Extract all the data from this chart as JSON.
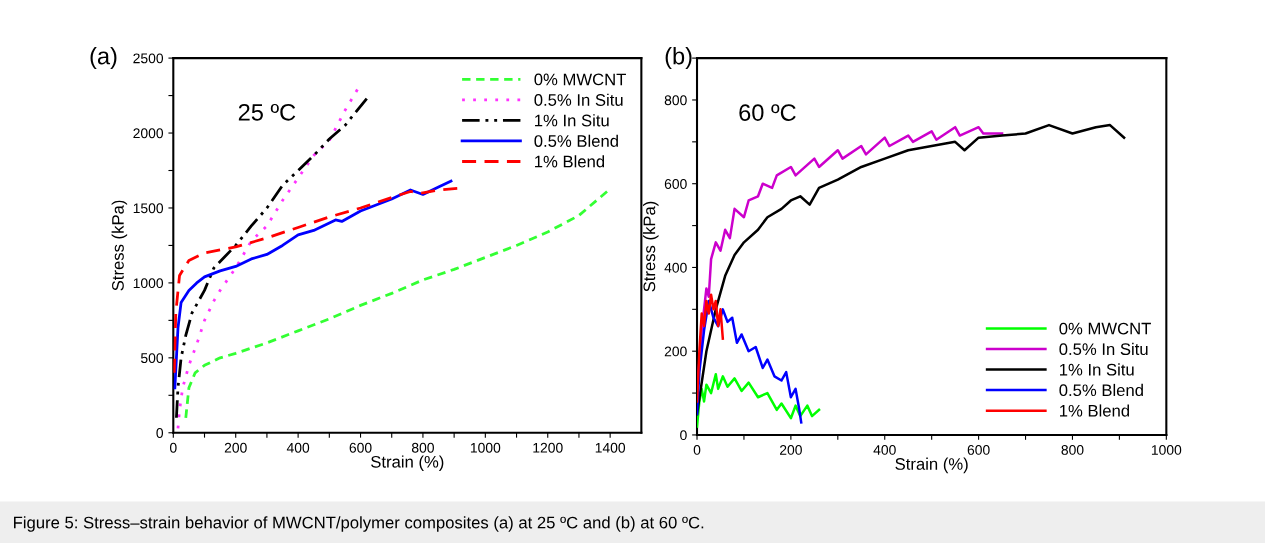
{
  "chart_data": [
    {
      "type": "line",
      "xlabel": "Strain (%)",
      "ylabel": "Stress (kPa)",
      "xlim": [
        0,
        1500
      ],
      "ylim": [
        0,
        2500
      ],
      "xticks": [
        0,
        {
          "value": 100,
          "label": null
        },
        200,
        {
          "value": 300,
          "label": null
        },
        400,
        {
          "value": 500,
          "label": null
        },
        600,
        {
          "value": 700,
          "label": null
        },
        800,
        {
          "value": 900,
          "label": null
        },
        1000,
        {
          "value": 1100,
          "label": null
        },
        1200,
        {
          "value": 1300,
          "label": null
        },
        1400
      ],
      "yticks": [
        0,
        {
          "value": 250,
          "label": null
        },
        500,
        {
          "value": 750,
          "label": null
        },
        1000,
        {
          "value": 1250,
          "label": null
        },
        1500,
        {
          "value": 1750,
          "label": null
        },
        2000,
        {
          "value": 2250,
          "label": null
        },
        2500
      ],
      "legend": "top right",
      "grid": false,
      "annotations": [
        "(a)",
        "25 ºC",
        "Figure 5: Stress–strain behavior of MWCNT/polymer composites (a) at 25 ºC and (b) at 60 ºC."
      ],
      "series": [
        {
          "name": "0% MWCNT",
          "color": "#33ff33",
          "line_style": "dashed",
          "x": [
            40,
            50,
            70,
            100,
            150,
            200,
            300,
            400,
            500,
            600,
            700,
            800,
            900,
            1000,
            1100,
            1200,
            1300,
            1390
          ],
          "values": [
            100,
            300,
            400,
            450,
            500,
            530,
            600,
            680,
            760,
            850,
            930,
            1020,
            1090,
            1170,
            1250,
            1340,
            1450,
            1610
          ]
        },
        {
          "name": "0.5% In Situ",
          "color": "#ff33ff",
          "line_style": "dotted",
          "x": [
            15,
            20,
            30,
            50,
            80,
            100,
            130,
            150,
            200,
            250,
            300,
            350,
            400,
            450,
            500,
            550,
            590
          ],
          "values": [
            30,
            150,
            300,
            450,
            620,
            750,
            880,
            950,
            1100,
            1280,
            1380,
            1550,
            1700,
            1850,
            1950,
            2150,
            2290
          ]
        },
        {
          "name": "1% In Situ",
          "color": "#000000",
          "line_style": "dashdot",
          "x": [
            10,
            15,
            25,
            40,
            60,
            100,
            130,
            200,
            250,
            300,
            350,
            400,
            450,
            500,
            550,
            620
          ],
          "values": [
            100,
            300,
            500,
            650,
            800,
            950,
            1100,
            1250,
            1380,
            1500,
            1650,
            1750,
            1850,
            1960,
            2050,
            2230
          ]
        },
        {
          "name": "0.5% Blend",
          "color": "#0000ff",
          "line_style": "solid",
          "x": [
            5,
            15,
            25,
            50,
            75,
            100,
            150,
            200,
            250,
            300,
            350,
            400,
            450,
            500,
            520,
            540,
            600,
            650,
            700,
            760,
            800,
            850,
            890
          ],
          "values": [
            300,
            700,
            870,
            950,
            1000,
            1040,
            1080,
            1110,
            1160,
            1190,
            1250,
            1320,
            1350,
            1400,
            1420,
            1410,
            1480,
            1520,
            1560,
            1620,
            1590,
            1640,
            1680
          ]
        },
        {
          "name": "1% Blend",
          "color": "#ff0000",
          "line_style": "longdash",
          "x": [
            3,
            8,
            20,
            50,
            100,
            200,
            300,
            400,
            500,
            600,
            700,
            760,
            800,
            850,
            910
          ],
          "values": [
            400,
            800,
            1050,
            1150,
            1200,
            1240,
            1300,
            1370,
            1440,
            1500,
            1570,
            1610,
            1600,
            1620,
            1630
          ]
        }
      ]
    },
    {
      "type": "line",
      "xlabel": "Strain (%)",
      "ylabel": "Stress (kPa)",
      "xlim": [
        0,
        1000
      ],
      "ylim": [
        0,
        900
      ],
      "xticks": [
        0,
        {
          "value": 100,
          "label": null
        },
        200,
        {
          "value": 300,
          "label": null
        },
        400,
        {
          "value": 500,
          "label": null
        },
        600,
        {
          "value": 700,
          "label": null
        },
        800,
        {
          "value": 900,
          "label": null
        },
        1000
      ],
      "yticks": [
        0,
        {
          "value": 100,
          "label": null
        },
        200,
        {
          "value": 300,
          "label": null
        },
        400,
        {
          "value": 500,
          "label": null
        },
        600,
        {
          "value": 700,
          "label": null
        },
        800,
        {
          "value": 900,
          "label": null
        }
      ],
      "legend": "bottom right",
      "grid": false,
      "annotations": [
        "(b)",
        "60 ºC"
      ],
      "series": [
        {
          "name": "0% MWCNT",
          "color": "#00ff00",
          "line_style": "solid",
          "x": [
            0,
            5,
            10,
            15,
            20,
            30,
            40,
            45,
            55,
            65,
            80,
            95,
            110,
            130,
            150,
            170,
            180,
            200,
            210,
            220,
            235,
            245,
            260
          ],
          "values": [
            20,
            80,
            110,
            80,
            120,
            100,
            145,
            110,
            140,
            115,
            135,
            105,
            125,
            90,
            100,
            60,
            75,
            40,
            70,
            45,
            70,
            45,
            60
          ]
        },
        {
          "name": "0.5% In Situ",
          "color": "#cc00cc",
          "line_style": "solid",
          "x": [
            0,
            10,
            20,
            25,
            30,
            40,
            50,
            60,
            70,
            80,
            100,
            110,
            130,
            140,
            160,
            170,
            200,
            210,
            250,
            260,
            300,
            310,
            350,
            360,
            400,
            410,
            450,
            460,
            500,
            510,
            550,
            560,
            600,
            610,
            650
          ],
          "values": [
            100,
            250,
            350,
            330,
            420,
            460,
            440,
            490,
            470,
            540,
            520,
            560,
            570,
            600,
            590,
            620,
            640,
            620,
            660,
            640,
            680,
            660,
            690,
            670,
            710,
            690,
            715,
            700,
            725,
            705,
            735,
            715,
            735,
            720,
            720
          ]
        },
        {
          "name": "1% In Situ",
          "color": "#000000",
          "line_style": "solid",
          "x": [
            0,
            20,
            40,
            60,
            80,
            100,
            130,
            150,
            180,
            200,
            220,
            240,
            260,
            300,
            350,
            400,
            450,
            500,
            550,
            570,
            600,
            650,
            700,
            750,
            800,
            850,
            880,
            910
          ],
          "values": [
            50,
            200,
            300,
            380,
            430,
            460,
            490,
            520,
            540,
            560,
            570,
            550,
            590,
            610,
            640,
            660,
            680,
            690,
            700,
            680,
            710,
            715,
            720,
            740,
            720,
            735,
            740,
            710
          ]
        },
        {
          "name": "0.5% Blend",
          "color": "#0000ff",
          "line_style": "solid",
          "x": [
            0,
            5,
            15,
            25,
            35,
            45,
            55,
            65,
            75,
            85,
            95,
            110,
            125,
            140,
            150,
            165,
            180,
            190,
            200,
            210,
            218,
            222
          ],
          "values": [
            50,
            150,
            250,
            320,
            280,
            260,
            300,
            270,
            280,
            220,
            240,
            200,
            210,
            160,
            180,
            140,
            130,
            150,
            90,
            110,
            60,
            30
          ]
        },
        {
          "name": "1% Blend",
          "color": "#ff0000",
          "line_style": "solid",
          "x": [
            0,
            5,
            10,
            15,
            20,
            25,
            30,
            35,
            40,
            45,
            50,
            55
          ],
          "values": [
            80,
            200,
            290,
            260,
            320,
            290,
            335,
            300,
            320,
            260,
            300,
            230
          ]
        }
      ]
    }
  ]
}
